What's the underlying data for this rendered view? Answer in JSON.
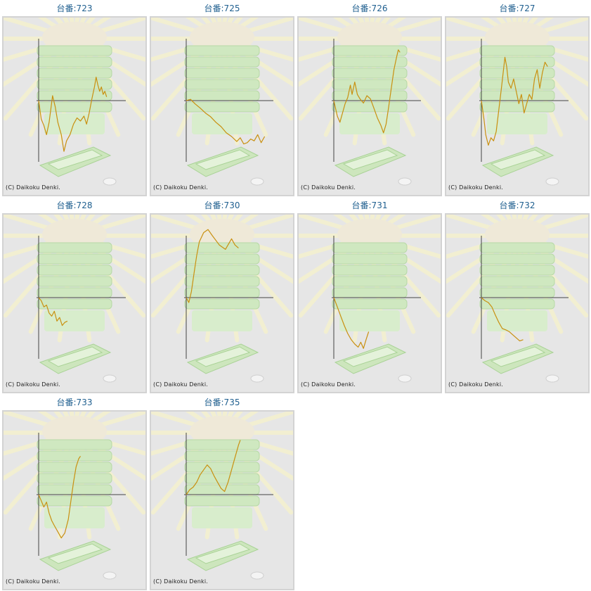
{
  "page_title": "",
  "colors": {
    "title": "#1f5f8f",
    "line": "#c99010",
    "axis": "#444444",
    "panel_bg": "#e6e6e6"
  },
  "copyright": "(C) Daikoku Denki.",
  "chart_data": [
    {
      "type": "line",
      "title": "台番:723",
      "xlim": [
        0,
        1
      ],
      "ylim": [
        -1,
        1
      ],
      "series": [
        {
          "values": [
            [
              0,
              0
            ],
            [
              0.03,
              -0.3
            ],
            [
              0.06,
              -0.4
            ],
            [
              0.09,
              -0.55
            ],
            [
              0.12,
              -0.35
            ],
            [
              0.16,
              0.08
            ],
            [
              0.19,
              -0.1
            ],
            [
              0.22,
              -0.35
            ],
            [
              0.26,
              -0.55
            ],
            [
              0.29,
              -0.82
            ],
            [
              0.32,
              -0.65
            ],
            [
              0.36,
              -0.55
            ],
            [
              0.4,
              -0.38
            ],
            [
              0.44,
              -0.28
            ],
            [
              0.48,
              -0.33
            ],
            [
              0.52,
              -0.25
            ],
            [
              0.55,
              -0.38
            ],
            [
              0.58,
              -0.2
            ],
            [
              0.61,
              0.02
            ],
            [
              0.64,
              0.22
            ],
            [
              0.66,
              0.38
            ],
            [
              0.68,
              0.25
            ],
            [
              0.7,
              0.15
            ],
            [
              0.72,
              0.22
            ],
            [
              0.74,
              0.1
            ],
            [
              0.76,
              0.15
            ],
            [
              0.78,
              0.06
            ]
          ]
        }
      ]
    },
    {
      "type": "line",
      "title": "台番:725",
      "xlim": [
        0,
        1
      ],
      "ylim": [
        -1,
        1
      ],
      "series": [
        {
          "values": [
            [
              0,
              0
            ],
            [
              0.05,
              0.02
            ],
            [
              0.1,
              -0.05
            ],
            [
              0.16,
              -0.12
            ],
            [
              0.22,
              -0.2
            ],
            [
              0.28,
              -0.26
            ],
            [
              0.34,
              -0.35
            ],
            [
              0.4,
              -0.42
            ],
            [
              0.46,
              -0.52
            ],
            [
              0.52,
              -0.58
            ],
            [
              0.58,
              -0.66
            ],
            [
              0.62,
              -0.6
            ],
            [
              0.66,
              -0.7
            ],
            [
              0.7,
              -0.68
            ],
            [
              0.74,
              -0.62
            ],
            [
              0.78,
              -0.65
            ],
            [
              0.82,
              -0.55
            ],
            [
              0.86,
              -0.68
            ],
            [
              0.9,
              -0.58
            ]
          ]
        }
      ]
    },
    {
      "type": "line",
      "title": "台番:726",
      "xlim": [
        0,
        1
      ],
      "ylim": [
        -1,
        1
      ],
      "series": [
        {
          "values": [
            [
              0,
              0
            ],
            [
              0.04,
              -0.25
            ],
            [
              0.07,
              -0.35
            ],
            [
              0.1,
              -0.2
            ],
            [
              0.13,
              -0.05
            ],
            [
              0.16,
              0.05
            ],
            [
              0.19,
              0.25
            ],
            [
              0.21,
              0.1
            ],
            [
              0.24,
              0.3
            ],
            [
              0.27,
              0.1
            ],
            [
              0.3,
              0.03
            ],
            [
              0.34,
              -0.04
            ],
            [
              0.38,
              0.08
            ],
            [
              0.42,
              0.03
            ],
            [
              0.46,
              -0.12
            ],
            [
              0.5,
              -0.28
            ],
            [
              0.54,
              -0.4
            ],
            [
              0.57,
              -0.52
            ],
            [
              0.6,
              -0.38
            ],
            [
              0.63,
              -0.1
            ],
            [
              0.66,
              0.2
            ],
            [
              0.69,
              0.5
            ],
            [
              0.72,
              0.7
            ],
            [
              0.74,
              0.82
            ],
            [
              0.76,
              0.78
            ]
          ]
        }
      ]
    },
    {
      "type": "line",
      "title": "台番:727",
      "xlim": [
        0,
        1
      ],
      "ylim": [
        -1,
        1
      ],
      "series": [
        {
          "values": [
            [
              0,
              0
            ],
            [
              0.03,
              -0.3
            ],
            [
              0.05,
              -0.55
            ],
            [
              0.08,
              -0.72
            ],
            [
              0.11,
              -0.6
            ],
            [
              0.14,
              -0.65
            ],
            [
              0.17,
              -0.5
            ],
            [
              0.2,
              -0.15
            ],
            [
              0.23,
              0.2
            ],
            [
              0.25,
              0.45
            ],
            [
              0.27,
              0.7
            ],
            [
              0.29,
              0.55
            ],
            [
              0.31,
              0.3
            ],
            [
              0.34,
              0.2
            ],
            [
              0.37,
              0.35
            ],
            [
              0.4,
              0.15
            ],
            [
              0.43,
              -0.05
            ],
            [
              0.46,
              0.1
            ],
            [
              0.49,
              -0.2
            ],
            [
              0.52,
              -0.05
            ],
            [
              0.55,
              0.1
            ],
            [
              0.58,
              0.02
            ],
            [
              0.61,
              0.35
            ],
            [
              0.64,
              0.5
            ],
            [
              0.67,
              0.2
            ],
            [
              0.7,
              0.45
            ],
            [
              0.73,
              0.62
            ],
            [
              0.76,
              0.55
            ]
          ]
        }
      ]
    },
    {
      "type": "line",
      "title": "台番:728",
      "xlim": [
        0,
        1
      ],
      "ylim": [
        -1,
        1
      ],
      "series": [
        {
          "values": [
            [
              0,
              0
            ],
            [
              0.03,
              -0.05
            ],
            [
              0.06,
              -0.15
            ],
            [
              0.09,
              -0.12
            ],
            [
              0.12,
              -0.25
            ],
            [
              0.15,
              -0.3
            ],
            [
              0.18,
              -0.22
            ],
            [
              0.21,
              -0.38
            ],
            [
              0.24,
              -0.32
            ],
            [
              0.27,
              -0.45
            ],
            [
              0.3,
              -0.4
            ],
            [
              0.33,
              -0.38
            ]
          ]
        }
      ]
    },
    {
      "type": "line",
      "title": "台番:730",
      "xlim": [
        0,
        1
      ],
      "ylim": [
        -1,
        1
      ],
      "series": [
        {
          "values": [
            [
              0,
              0
            ],
            [
              0.03,
              -0.08
            ],
            [
              0.06,
              0.1
            ],
            [
              0.09,
              0.4
            ],
            [
              0.12,
              0.68
            ],
            [
              0.15,
              0.9
            ],
            [
              0.2,
              1.05
            ],
            [
              0.25,
              1.1
            ],
            [
              0.3,
              1.0
            ],
            [
              0.38,
              0.85
            ],
            [
              0.45,
              0.78
            ],
            [
              0.52,
              0.95
            ],
            [
              0.56,
              0.85
            ],
            [
              0.6,
              0.8
            ]
          ]
        }
      ]
    },
    {
      "type": "line",
      "title": "台番:731",
      "xlim": [
        0,
        1
      ],
      "ylim": [
        -1,
        1
      ],
      "series": [
        {
          "values": [
            [
              0,
              0
            ],
            [
              0.04,
              -0.15
            ],
            [
              0.08,
              -0.3
            ],
            [
              0.12,
              -0.45
            ],
            [
              0.16,
              -0.58
            ],
            [
              0.2,
              -0.68
            ],
            [
              0.24,
              -0.75
            ],
            [
              0.28,
              -0.8
            ],
            [
              0.31,
              -0.72
            ],
            [
              0.34,
              -0.82
            ],
            [
              0.37,
              -0.68
            ],
            [
              0.4,
              -0.55
            ]
          ]
        }
      ]
    },
    {
      "type": "line",
      "title": "台番:732",
      "xlim": [
        0,
        1
      ],
      "ylim": [
        -1,
        1
      ],
      "series": [
        {
          "values": [
            [
              0,
              0
            ],
            [
              0.04,
              -0.05
            ],
            [
              0.08,
              -0.08
            ],
            [
              0.12,
              -0.15
            ],
            [
              0.16,
              -0.28
            ],
            [
              0.2,
              -0.4
            ],
            [
              0.24,
              -0.5
            ],
            [
              0.28,
              -0.52
            ],
            [
              0.32,
              -0.55
            ],
            [
              0.36,
              -0.6
            ],
            [
              0.4,
              -0.65
            ],
            [
              0.44,
              -0.7
            ],
            [
              0.48,
              -0.68
            ]
          ]
        }
      ]
    },
    {
      "type": "line",
      "title": "台番:733",
      "xlim": [
        0,
        1
      ],
      "ylim": [
        -1,
        1
      ],
      "series": [
        {
          "values": [
            [
              0,
              0
            ],
            [
              0.03,
              -0.1
            ],
            [
              0.06,
              -0.2
            ],
            [
              0.09,
              -0.12
            ],
            [
              0.12,
              -0.3
            ],
            [
              0.15,
              -0.42
            ],
            [
              0.18,
              -0.5
            ],
            [
              0.22,
              -0.6
            ],
            [
              0.26,
              -0.7
            ],
            [
              0.3,
              -0.62
            ],
            [
              0.34,
              -0.4
            ],
            [
              0.37,
              -0.1
            ],
            [
              0.4,
              0.2
            ],
            [
              0.43,
              0.45
            ],
            [
              0.46,
              0.58
            ],
            [
              0.48,
              0.62
            ]
          ]
        }
      ]
    },
    {
      "type": "line",
      "title": "台番:735",
      "xlim": [
        0,
        1
      ],
      "ylim": [
        -1,
        1
      ],
      "series": [
        {
          "values": [
            [
              0,
              0
            ],
            [
              0.04,
              0.08
            ],
            [
              0.08,
              0.12
            ],
            [
              0.12,
              0.2
            ],
            [
              0.16,
              0.32
            ],
            [
              0.2,
              0.4
            ],
            [
              0.24,
              0.48
            ],
            [
              0.28,
              0.42
            ],
            [
              0.32,
              0.3
            ],
            [
              0.36,
              0.2
            ],
            [
              0.4,
              0.1
            ],
            [
              0.44,
              0.05
            ],
            [
              0.48,
              0.2
            ],
            [
              0.52,
              0.4
            ],
            [
              0.56,
              0.6
            ],
            [
              0.6,
              0.8
            ],
            [
              0.62,
              0.88
            ]
          ]
        }
      ]
    }
  ]
}
